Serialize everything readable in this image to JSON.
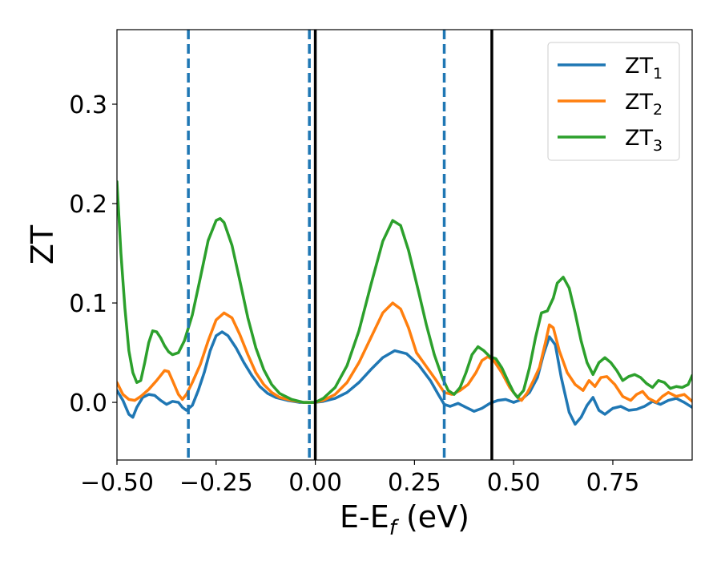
{
  "chart_data": {
    "type": "line",
    "xlabel": {
      "main": "E-E",
      "sub": "f",
      "suffix": " (eV)"
    },
    "ylabel": "ZT",
    "xlim": [
      -0.5,
      0.95
    ],
    "ylim": [
      -0.058,
      0.375
    ],
    "x_ticks": [
      -0.5,
      -0.25,
      0.0,
      0.25,
      0.5,
      0.75
    ],
    "x_tick_labels": [
      "−0.50",
      "−0.25",
      "0.00",
      "0.25",
      "0.50",
      "0.75"
    ],
    "y_ticks": [
      0.0,
      0.1,
      0.2,
      0.3
    ],
    "y_tick_labels": [
      "0.0",
      "0.1",
      "0.2",
      "0.3"
    ],
    "grid": false,
    "legend_position": "top-right",
    "vlines_dashed": {
      "color": "#1f77b4",
      "x": [
        -0.32,
        -0.015,
        0.325
      ]
    },
    "vlines_solid": {
      "color": "#000000",
      "x": [
        0.0,
        0.445
      ]
    },
    "series": [
      {
        "name": "ZT",
        "sub": "1",
        "color": "#1f77b4",
        "points": [
          [
            -0.5,
            0.012
          ],
          [
            -0.485,
            0.002
          ],
          [
            -0.47,
            -0.012
          ],
          [
            -0.46,
            -0.015
          ],
          [
            -0.45,
            -0.005
          ],
          [
            -0.435,
            0.005
          ],
          [
            -0.42,
            0.008
          ],
          [
            -0.405,
            0.007
          ],
          [
            -0.39,
            0.002
          ],
          [
            -0.375,
            -0.002
          ],
          [
            -0.36,
            0.001
          ],
          [
            -0.345,
            0.0
          ],
          [
            -0.335,
            -0.005
          ],
          [
            -0.325,
            -0.008
          ],
          [
            -0.31,
            -0.003
          ],
          [
            -0.295,
            0.012
          ],
          [
            -0.28,
            0.03
          ],
          [
            -0.265,
            0.052
          ],
          [
            -0.25,
            0.067
          ],
          [
            -0.235,
            0.071
          ],
          [
            -0.22,
            0.067
          ],
          [
            -0.2,
            0.055
          ],
          [
            -0.18,
            0.04
          ],
          [
            -0.16,
            0.027
          ],
          [
            -0.14,
            0.016
          ],
          [
            -0.12,
            0.009
          ],
          [
            -0.1,
            0.005
          ],
          [
            -0.07,
            0.002
          ],
          [
            -0.04,
            0.0
          ],
          [
            -0.015,
            0.0
          ],
          [
            0.0,
            0.0
          ],
          [
            0.02,
            0.001
          ],
          [
            0.05,
            0.004
          ],
          [
            0.08,
            0.01
          ],
          [
            0.11,
            0.02
          ],
          [
            0.14,
            0.033
          ],
          [
            0.17,
            0.045
          ],
          [
            0.2,
            0.052
          ],
          [
            0.23,
            0.049
          ],
          [
            0.26,
            0.038
          ],
          [
            0.29,
            0.022
          ],
          [
            0.31,
            0.008
          ],
          [
            0.325,
            -0.002
          ],
          [
            0.34,
            -0.004
          ],
          [
            0.36,
            -0.001
          ],
          [
            0.38,
            -0.005
          ],
          [
            0.4,
            -0.009
          ],
          [
            0.42,
            -0.006
          ],
          [
            0.44,
            -0.001
          ],
          [
            0.46,
            0.002
          ],
          [
            0.48,
            0.003
          ],
          [
            0.5,
            0.0
          ],
          [
            0.52,
            0.003
          ],
          [
            0.54,
            0.01
          ],
          [
            0.56,
            0.025
          ],
          [
            0.575,
            0.048
          ],
          [
            0.59,
            0.066
          ],
          [
            0.605,
            0.058
          ],
          [
            0.62,
            0.025
          ],
          [
            0.64,
            -0.01
          ],
          [
            0.655,
            -0.022
          ],
          [
            0.67,
            -0.015
          ],
          [
            0.685,
            -0.003
          ],
          [
            0.7,
            0.005
          ],
          [
            0.715,
            -0.008
          ],
          [
            0.73,
            -0.012
          ],
          [
            0.75,
            -0.006
          ],
          [
            0.77,
            -0.004
          ],
          [
            0.79,
            -0.008
          ],
          [
            0.81,
            -0.007
          ],
          [
            0.83,
            -0.004
          ],
          [
            0.85,
            0.001
          ],
          [
            0.87,
            -0.002
          ],
          [
            0.89,
            0.002
          ],
          [
            0.91,
            0.004
          ],
          [
            0.93,
            0.0
          ],
          [
            0.95,
            -0.005
          ]
        ]
      },
      {
        "name": "ZT",
        "sub": "2",
        "color": "#ff7f0e",
        "points": [
          [
            -0.5,
            0.02
          ],
          [
            -0.485,
            0.008
          ],
          [
            -0.47,
            0.003
          ],
          [
            -0.455,
            0.002
          ],
          [
            -0.44,
            0.006
          ],
          [
            -0.42,
            0.013
          ],
          [
            -0.4,
            0.022
          ],
          [
            -0.38,
            0.032
          ],
          [
            -0.37,
            0.031
          ],
          [
            -0.36,
            0.022
          ],
          [
            -0.345,
            0.008
          ],
          [
            -0.335,
            0.003
          ],
          [
            -0.325,
            0.008
          ],
          [
            -0.31,
            0.02
          ],
          [
            -0.29,
            0.038
          ],
          [
            -0.27,
            0.062
          ],
          [
            -0.25,
            0.083
          ],
          [
            -0.23,
            0.09
          ],
          [
            -0.21,
            0.085
          ],
          [
            -0.19,
            0.068
          ],
          [
            -0.17,
            0.048
          ],
          [
            -0.15,
            0.03
          ],
          [
            -0.13,
            0.018
          ],
          [
            -0.11,
            0.01
          ],
          [
            -0.09,
            0.005
          ],
          [
            -0.06,
            0.002
          ],
          [
            -0.03,
            0.0
          ],
          [
            -0.015,
            0.0
          ],
          [
            0.0,
            0.0
          ],
          [
            0.02,
            0.002
          ],
          [
            0.05,
            0.008
          ],
          [
            0.08,
            0.02
          ],
          [
            0.11,
            0.04
          ],
          [
            0.14,
            0.065
          ],
          [
            0.17,
            0.09
          ],
          [
            0.195,
            0.1
          ],
          [
            0.215,
            0.094
          ],
          [
            0.235,
            0.075
          ],
          [
            0.255,
            0.05
          ],
          [
            0.28,
            0.036
          ],
          [
            0.305,
            0.022
          ],
          [
            0.325,
            0.01
          ],
          [
            0.345,
            0.008
          ],
          [
            0.365,
            0.012
          ],
          [
            0.385,
            0.018
          ],
          [
            0.405,
            0.03
          ],
          [
            0.42,
            0.042
          ],
          [
            0.435,
            0.046
          ],
          [
            0.45,
            0.042
          ],
          [
            0.47,
            0.03
          ],
          [
            0.49,
            0.015
          ],
          [
            0.51,
            0.005
          ],
          [
            0.52,
            0.002
          ],
          [
            0.535,
            0.01
          ],
          [
            0.55,
            0.022
          ],
          [
            0.565,
            0.035
          ],
          [
            0.58,
            0.06
          ],
          [
            0.59,
            0.078
          ],
          [
            0.6,
            0.075
          ],
          [
            0.615,
            0.052
          ],
          [
            0.635,
            0.03
          ],
          [
            0.655,
            0.018
          ],
          [
            0.675,
            0.012
          ],
          [
            0.69,
            0.022
          ],
          [
            0.705,
            0.016
          ],
          [
            0.72,
            0.025
          ],
          [
            0.735,
            0.026
          ],
          [
            0.755,
            0.018
          ],
          [
            0.775,
            0.006
          ],
          [
            0.795,
            0.002
          ],
          [
            0.81,
            0.008
          ],
          [
            0.825,
            0.011
          ],
          [
            0.84,
            0.004
          ],
          [
            0.86,
            0.0
          ],
          [
            0.875,
            0.006
          ],
          [
            0.89,
            0.01
          ],
          [
            0.91,
            0.006
          ],
          [
            0.93,
            0.008
          ],
          [
            0.95,
            0.001
          ]
        ]
      },
      {
        "name": "ZT",
        "sub": "3",
        "color": "#2ca02c",
        "points": [
          [
            -0.5,
            0.222
          ],
          [
            -0.49,
            0.15
          ],
          [
            -0.48,
            0.095
          ],
          [
            -0.47,
            0.052
          ],
          [
            -0.46,
            0.03
          ],
          [
            -0.45,
            0.02
          ],
          [
            -0.44,
            0.022
          ],
          [
            -0.43,
            0.04
          ],
          [
            -0.42,
            0.06
          ],
          [
            -0.41,
            0.072
          ],
          [
            -0.4,
            0.071
          ],
          [
            -0.39,
            0.065
          ],
          [
            -0.38,
            0.057
          ],
          [
            -0.37,
            0.051
          ],
          [
            -0.36,
            0.048
          ],
          [
            -0.345,
            0.05
          ],
          [
            -0.33,
            0.062
          ],
          [
            -0.31,
            0.088
          ],
          [
            -0.29,
            0.125
          ],
          [
            -0.27,
            0.163
          ],
          [
            -0.25,
            0.183
          ],
          [
            -0.24,
            0.185
          ],
          [
            -0.23,
            0.181
          ],
          [
            -0.21,
            0.158
          ],
          [
            -0.19,
            0.122
          ],
          [
            -0.17,
            0.085
          ],
          [
            -0.15,
            0.055
          ],
          [
            -0.13,
            0.033
          ],
          [
            -0.11,
            0.018
          ],
          [
            -0.09,
            0.009
          ],
          [
            -0.06,
            0.003
          ],
          [
            -0.03,
            0.0
          ],
          [
            -0.015,
            0.0
          ],
          [
            0.0,
            0.0
          ],
          [
            0.02,
            0.004
          ],
          [
            0.05,
            0.015
          ],
          [
            0.08,
            0.037
          ],
          [
            0.11,
            0.072
          ],
          [
            0.14,
            0.118
          ],
          [
            0.17,
            0.162
          ],
          [
            0.195,
            0.183
          ],
          [
            0.215,
            0.178
          ],
          [
            0.235,
            0.153
          ],
          [
            0.26,
            0.112
          ],
          [
            0.28,
            0.078
          ],
          [
            0.3,
            0.048
          ],
          [
            0.32,
            0.025
          ],
          [
            0.335,
            0.012
          ],
          [
            0.35,
            0.008
          ],
          [
            0.365,
            0.015
          ],
          [
            0.38,
            0.03
          ],
          [
            0.395,
            0.048
          ],
          [
            0.41,
            0.056
          ],
          [
            0.425,
            0.052
          ],
          [
            0.44,
            0.046
          ],
          [
            0.455,
            0.044
          ],
          [
            0.47,
            0.035
          ],
          [
            0.485,
            0.022
          ],
          [
            0.5,
            0.01
          ],
          [
            0.51,
            0.005
          ],
          [
            0.525,
            0.012
          ],
          [
            0.54,
            0.035
          ],
          [
            0.555,
            0.065
          ],
          [
            0.57,
            0.09
          ],
          [
            0.585,
            0.092
          ],
          [
            0.6,
            0.105
          ],
          [
            0.61,
            0.12
          ],
          [
            0.625,
            0.126
          ],
          [
            0.64,
            0.115
          ],
          [
            0.655,
            0.09
          ],
          [
            0.67,
            0.062
          ],
          [
            0.685,
            0.04
          ],
          [
            0.7,
            0.028
          ],
          [
            0.715,
            0.04
          ],
          [
            0.73,
            0.045
          ],
          [
            0.745,
            0.04
          ],
          [
            0.76,
            0.032
          ],
          [
            0.775,
            0.022
          ],
          [
            0.79,
            0.026
          ],
          [
            0.805,
            0.028
          ],
          [
            0.82,
            0.025
          ],
          [
            0.835,
            0.019
          ],
          [
            0.85,
            0.015
          ],
          [
            0.865,
            0.022
          ],
          [
            0.88,
            0.02
          ],
          [
            0.895,
            0.014
          ],
          [
            0.91,
            0.016
          ],
          [
            0.925,
            0.015
          ],
          [
            0.94,
            0.018
          ],
          [
            0.95,
            0.027
          ]
        ]
      }
    ]
  }
}
